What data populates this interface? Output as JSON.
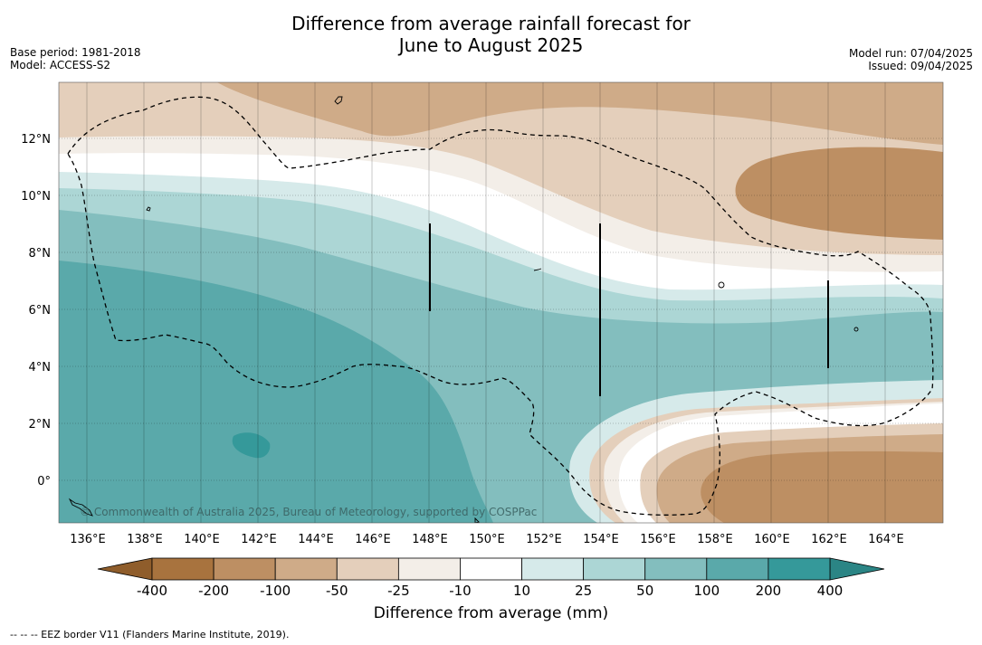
{
  "title": {
    "line1": "Difference from average rainfall forecast for",
    "line2": "June to August 2025"
  },
  "meta": {
    "base_period": "Base period: 1981-2018",
    "model": "Model: ACCESS-S2",
    "model_run": "Model run: 07/04/2025",
    "issued": "Issued: 09/04/2025"
  },
  "map": {
    "lon_labels": [
      "136°E",
      "138°E",
      "140°E",
      "142°E",
      "144°E",
      "146°E",
      "148°E",
      "150°E",
      "152°E",
      "154°E",
      "156°E",
      "158°E",
      "160°E",
      "162°E",
      "164°E"
    ],
    "lat_labels": [
      "12°N",
      "10°N",
      "8°N",
      "6°N",
      "4°N",
      "2°N",
      "0°"
    ],
    "copyright": "© Commonwealth of Australia 2025, Bureau of Meteorology, supported by COSPPac"
  },
  "legend": {
    "ticks": [
      "-400",
      "-200",
      "-100",
      "-50",
      "-25",
      "-10",
      "10",
      "25",
      "50",
      "100",
      "200",
      "400"
    ],
    "colors": [
      "#a8733e",
      "#bd8f63",
      "#cfab88",
      "#e4cfbb",
      "#f3eee8",
      "#ffffff",
      "#d6eaea",
      "#acd6d5",
      "#83bebe",
      "#5aa9aa",
      "#35999a"
    ],
    "extend_low_color": "#8f5d2b",
    "extend_high_color": "#2b8585",
    "label": "Difference from average (mm)"
  },
  "footnote": "--  --  -- EEZ border V11 (Flanders Marine Institute, 2019)."
}
